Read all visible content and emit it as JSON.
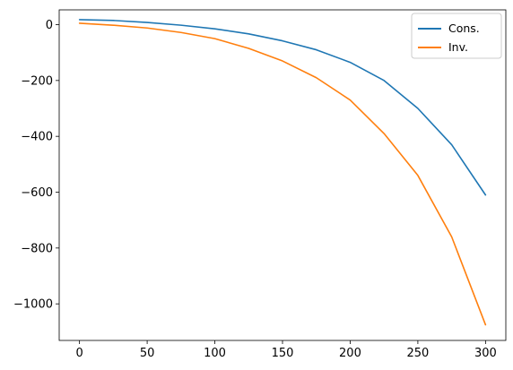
{
  "chart_data": {
    "type": "line",
    "title": "",
    "xlabel": "",
    "ylabel": "",
    "xlim": [
      -15,
      315
    ],
    "ylim": [
      -1131,
      53
    ],
    "x_ticks": [
      0,
      50,
      100,
      150,
      200,
      250,
      300
    ],
    "y_ticks": [
      0,
      -200,
      -400,
      -600,
      -800,
      -1000
    ],
    "x_tick_labels": [
      "0",
      "50",
      "100",
      "150",
      "200",
      "250",
      "300"
    ],
    "y_tick_labels": [
      "0",
      "−200",
      "−400",
      "−600",
      "−800",
      "−1000"
    ],
    "legend_position": "top-right",
    "grid": false,
    "series": [
      {
        "name": "Cons.",
        "color": "#1f77b4",
        "x": [
          0,
          25,
          50,
          75,
          100,
          125,
          150,
          175,
          200,
          225,
          250,
          275,
          300
        ],
        "y": [
          18,
          15,
          8,
          -2,
          -15,
          -33,
          -58,
          -90,
          -135,
          -200,
          -300,
          -430,
          -610
        ]
      },
      {
        "name": "Inv.",
        "color": "#ff7f0e",
        "x": [
          0,
          25,
          50,
          75,
          100,
          125,
          150,
          175,
          200,
          225,
          250,
          275,
          300
        ],
        "y": [
          5,
          -2,
          -12,
          -28,
          -50,
          -85,
          -130,
          -190,
          -270,
          -390,
          -540,
          -760,
          -1075
        ]
      }
    ]
  }
}
